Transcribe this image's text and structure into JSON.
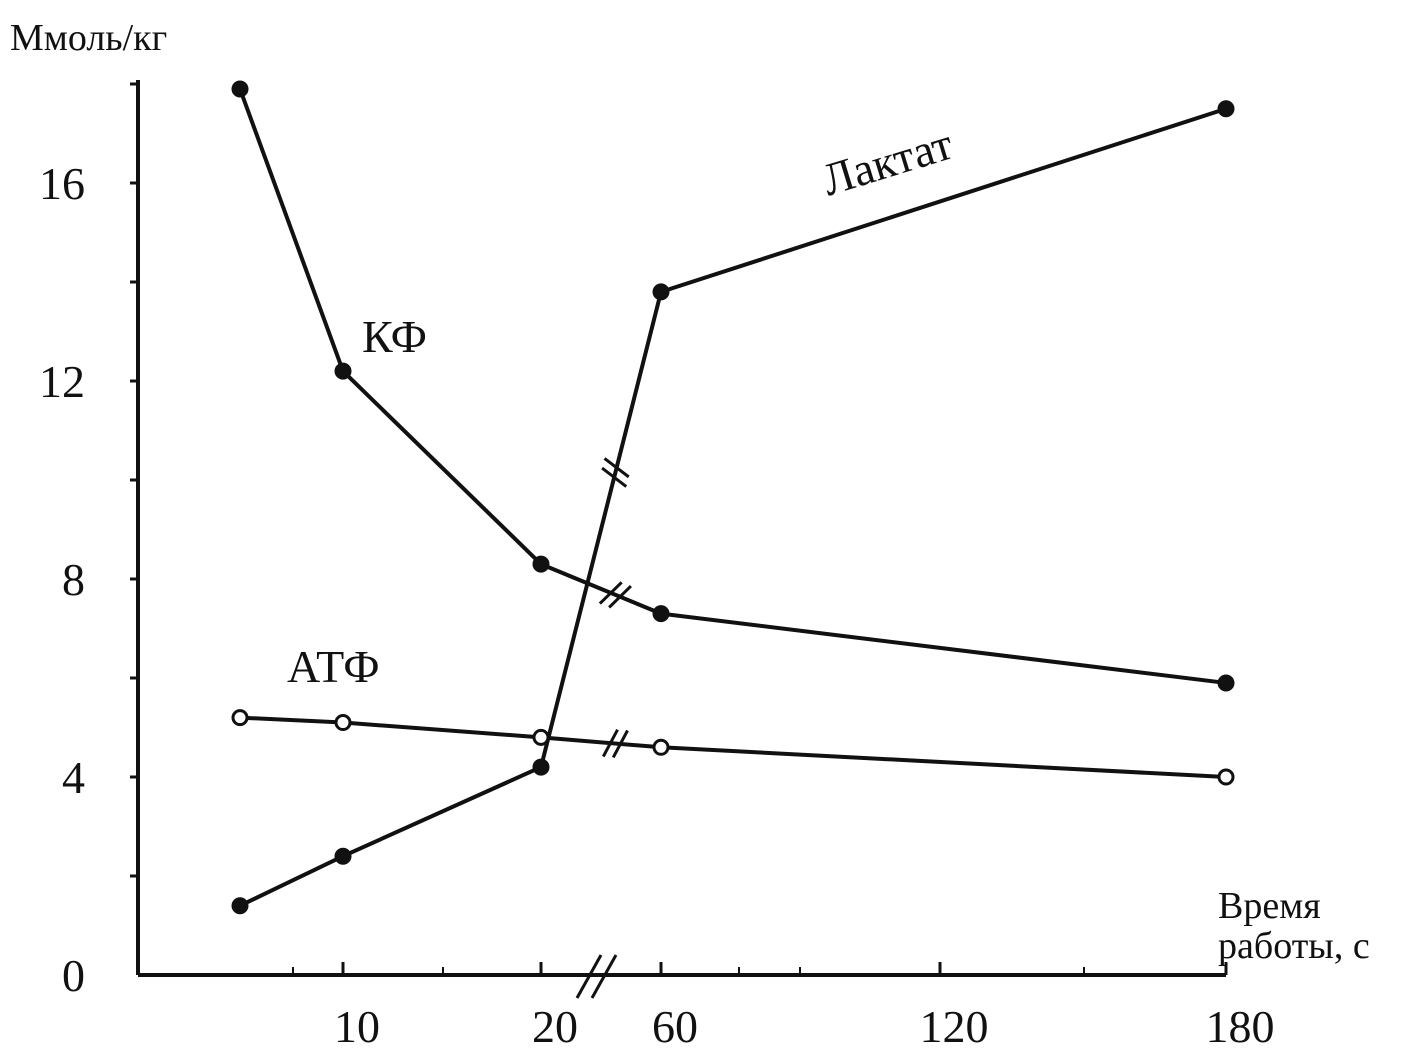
{
  "chart_data": {
    "type": "line",
    "ylabel": "Ммоль/кг",
    "xlabel_lines": [
      "Время",
      "работы, с"
    ],
    "ylim": [
      0,
      18
    ],
    "y_ticks": [
      0,
      4,
      8,
      12,
      16
    ],
    "x_ticks": [
      10,
      20,
      60,
      120,
      180
    ],
    "x_axis_break_between": [
      20,
      60
    ],
    "grid": false,
    "legend": "none (series labels placed next to lines)",
    "series": [
      {
        "name": "КФ",
        "marker": "filled-circle",
        "x": [
          0,
          10,
          20,
          60,
          180
        ],
        "y": [
          17.9,
          12.2,
          8.3,
          7.3,
          5.9
        ]
      },
      {
        "name": "Лактат",
        "marker": "filled-circle",
        "x": [
          0,
          10,
          20,
          60,
          180
        ],
        "y": [
          1.4,
          2.4,
          4.2,
          13.8,
          17.5
        ]
      },
      {
        "name": "АТФ",
        "marker": "open-circle",
        "x": [
          0,
          10,
          20,
          60,
          180
        ],
        "y": [
          5.2,
          5.1,
          4.8,
          4.6,
          4.0
        ]
      }
    ],
    "colors": {
      "line": "#111111",
      "background": "#ffffff"
    }
  }
}
